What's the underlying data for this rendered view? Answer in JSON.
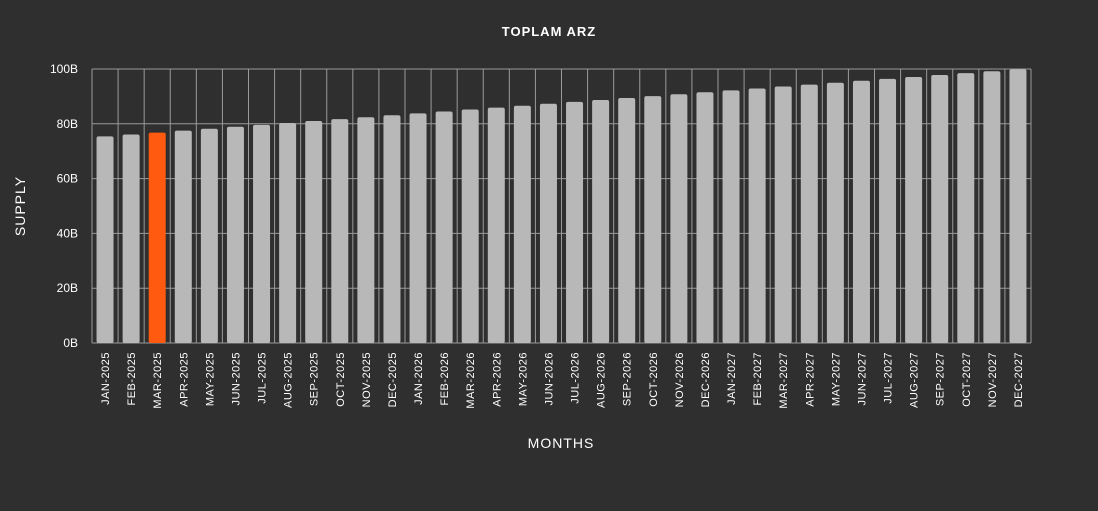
{
  "chart_data": {
    "type": "bar",
    "title": "TOPLAM ARZ",
    "xlabel": "MONTHS",
    "ylabel": "SUPPLY",
    "ylim": [
      0,
      100
    ],
    "y_ticks": [
      "0B",
      "20B",
      "40B",
      "60B",
      "80B",
      "100B"
    ],
    "y_unit": "B",
    "grid": true,
    "categories": [
      "JAN-2025",
      "FEB-2025",
      "MAR-2025",
      "APR-2025",
      "MAY-2025",
      "JUN-2025",
      "JUL-2025",
      "AUG-2025",
      "SEP-2025",
      "OCT-2025",
      "NOV-2025",
      "DEC-2025",
      "JAN-2026",
      "FEB-2026",
      "MAR-2026",
      "APR-2026",
      "MAY-2026",
      "JUN-2026",
      "JUL-2026",
      "AUG-2026",
      "SEP-2026",
      "OCT-2026",
      "NOV-2026",
      "DEC-2026",
      "JAN-2027",
      "FEB-2027",
      "MAR-2027",
      "APR-2027",
      "MAY-2027",
      "JUN-2027",
      "JUL-2027",
      "AUG-2027",
      "SEP-2027",
      "OCT-2027",
      "NOV-2027",
      "DEC-2027"
    ],
    "values": [
      75.4,
      76.1,
      76.8,
      77.5,
      78.2,
      78.9,
      79.6,
      80.3,
      81.0,
      81.7,
      82.4,
      83.1,
      83.8,
      84.5,
      85.2,
      85.9,
      86.6,
      87.3,
      88.0,
      88.7,
      89.4,
      90.1,
      90.8,
      91.5,
      92.2,
      92.9,
      93.6,
      94.3,
      95.0,
      95.7,
      96.4,
      97.1,
      97.8,
      98.5,
      99.2,
      99.9
    ],
    "highlight_index": 2,
    "colors": {
      "bar": "#b8b8b8",
      "highlight": "#ff5a0f",
      "background": "#2f2f2f",
      "grid": "#9a9a9a",
      "text": "#ffffff"
    }
  }
}
